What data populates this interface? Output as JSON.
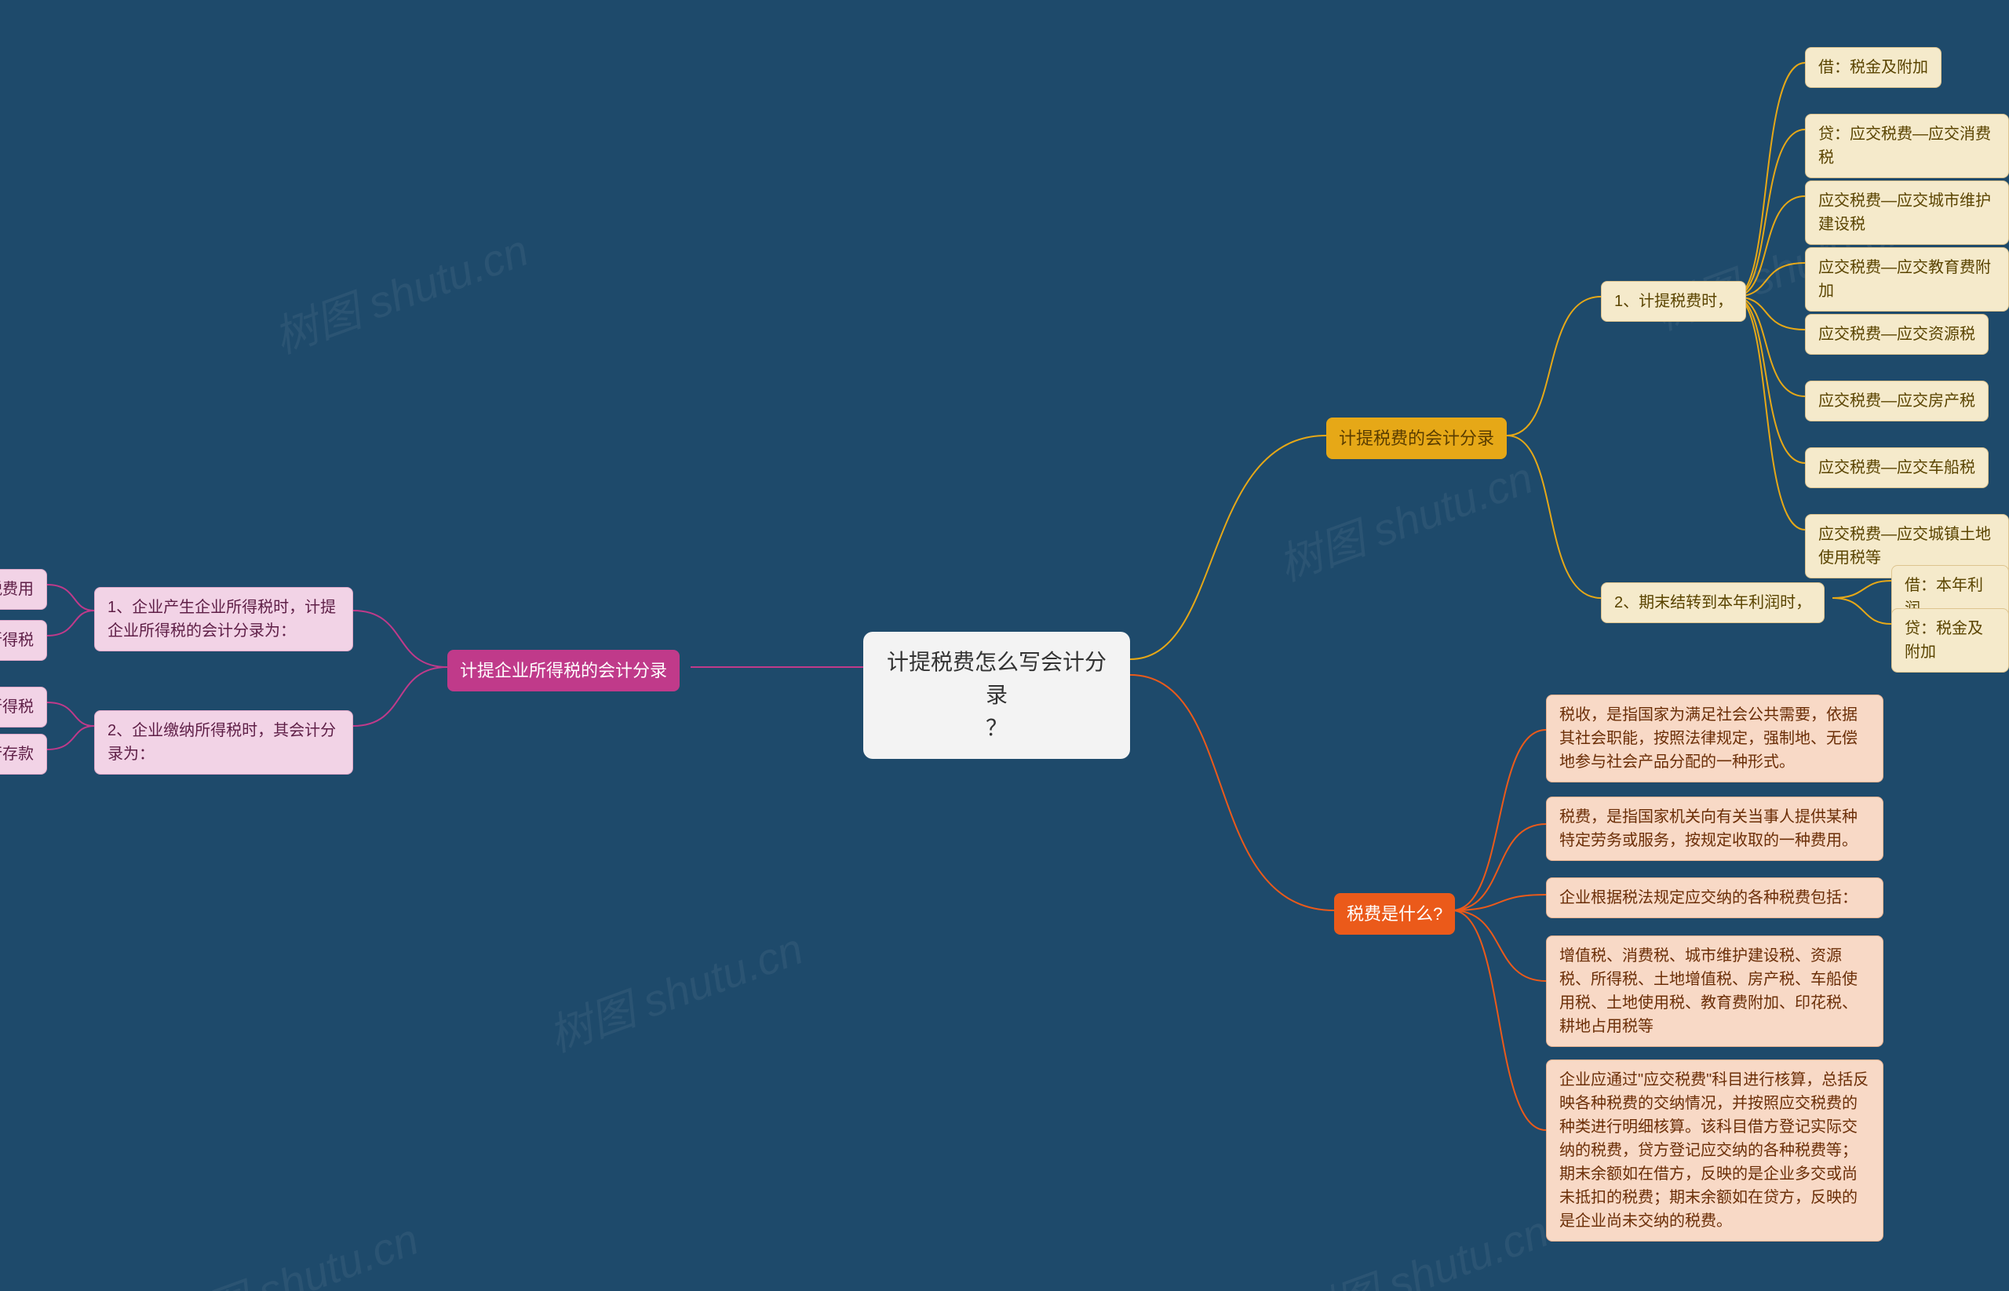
{
  "colors": {
    "bg": "#1e4a6b",
    "root_bg": "#f3f3f3",
    "root_text": "#333333",
    "b1_bg": "#e6a817",
    "b1_text": "#5a3d00",
    "b2_bg": "#eb5a1a",
    "b2_text": "#ffffff",
    "b3_bg": "#c03a8a",
    "b3_text": "#ffffff",
    "l1_bg": "#f5eacb",
    "l1_text": "#5a4400",
    "l1_border": "#ddc48f",
    "l2_bg": "#f8d9c6",
    "l2_text": "#6b2e07",
    "l2_border": "#e9b391",
    "l3_bg": "#f2d3e6",
    "l3_text": "#5e1e46",
    "l3_border": "#e0a9c9",
    "edge_b1": "#e6a817",
    "edge_b2": "#eb5a1a",
    "edge_b3": "#c03a8a",
    "wm": "rgba(255,255,255,0.06)"
  },
  "fontsizes": {
    "root": 28,
    "branch": 22,
    "leaf": 20,
    "wm": 56
  },
  "root": {
    "label": "计提税费怎么写会计分录\n？"
  },
  "b1": {
    "label": "计提税费的会计分录",
    "s1": {
      "label": "1、计提税费时，",
      "items": {
        "0": "借：税金及附加",
        "1": "贷：应交税费—应交消费税",
        "2": "应交税费—应交城市维护建设税",
        "3": "应交税费—应交教育费附加",
        "4": "应交税费—应交资源税",
        "5": "应交税费—应交房产税",
        "6": "应交税费—应交车船税",
        "7": "应交税费—应交城镇土地使用税等"
      }
    },
    "s2": {
      "label": "2、期末结转到本年利润时，",
      "items": {
        "0": "借：本年利润",
        "1": "贷：税金及附加"
      }
    }
  },
  "b2": {
    "label": "税费是什么?",
    "items": {
      "0": "税收，是指国家为满足社会公共需要，依据其社会职能，按照法律规定，强制地、无偿地参与社会产品分配的一种形式。",
      "1": "税费，是指国家机关向有关当事人提供某种特定劳务或服务，按规定收取的一种费用。",
      "2": "企业根据税法规定应交纳的各种税费包括：",
      "3": "增值税、消费税、城市维护建设税、资源税、所得税、土地增值税、房产税、车船使用税、土地使用税、教育费附加、印花税、耕地占用税等",
      "4": "企业应通过\"应交税费\"科目进行核算，总括反映各种税费的交纳情况，并按照应交税费的种类进行明细核算。该科目借方登记实际交纳的税费，贷方登记应交纳的各种税费等；期末余额如在借方，反映的是企业多交或尚未抵扣的税费；期末余额如在贷方，反映的是企业尚未交纳的税费。"
    }
  },
  "b3": {
    "label": "计提企业所得税的会计分录",
    "s1": {
      "label": "1、企业产生企业所得税时，计提企业所得税的会计分录为：",
      "items": {
        "0": "借：所得税费用",
        "1": "贷：应交税费—应交所得税"
      }
    },
    "s2": {
      "label": "2、企业缴纳所得税时，其会计分录为：",
      "items": {
        "0": "借：应交税费—应交所得税",
        "1": "贷：银行存款"
      }
    }
  },
  "watermark": "树图 shutu.cn"
}
